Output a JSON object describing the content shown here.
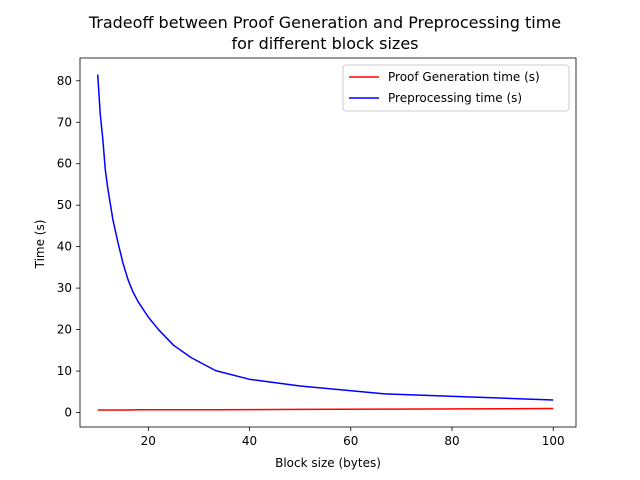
{
  "chart_data": {
    "type": "line",
    "title_line1": "Tradeoff between Proof Generation and Preprocessing time",
    "title_line2": "for different block sizes",
    "xlabel": "Block size (bytes)",
    "ylabel": "Time (s)",
    "xlim": [
      6.5,
      104.5
    ],
    "ylim": [
      -3.5,
      85.5
    ],
    "xticks": [
      20,
      40,
      60,
      80,
      100
    ],
    "yticks": [
      0,
      10,
      20,
      30,
      40,
      50,
      60,
      70,
      80
    ],
    "grid": false,
    "legend_position": "top-right",
    "series": [
      {
        "name": "Proof Generation time (s)",
        "color": "#ff0000",
        "x": [
          10,
          12,
          14,
          16,
          18,
          20,
          25,
          33,
          40,
          50,
          67,
          100
        ],
        "y": [
          0.6,
          0.6,
          0.6,
          0.6,
          0.65,
          0.65,
          0.65,
          0.65,
          0.7,
          0.75,
          0.8,
          0.95
        ]
      },
      {
        "name": "Preprocessing time (s)",
        "color": "#0000ff",
        "x": [
          10,
          10.5,
          11,
          11.5,
          12,
          13,
          14,
          15,
          16,
          17,
          18,
          20,
          22,
          25,
          28.5,
          33.3,
          40,
          50,
          66.7,
          100
        ],
        "y": [
          81.5,
          72,
          66,
          58.5,
          54,
          46.5,
          41,
          36,
          32,
          29,
          26.7,
          23,
          20,
          16.2,
          13.2,
          10.1,
          8.0,
          6.4,
          4.5,
          3.0
        ]
      }
    ]
  }
}
